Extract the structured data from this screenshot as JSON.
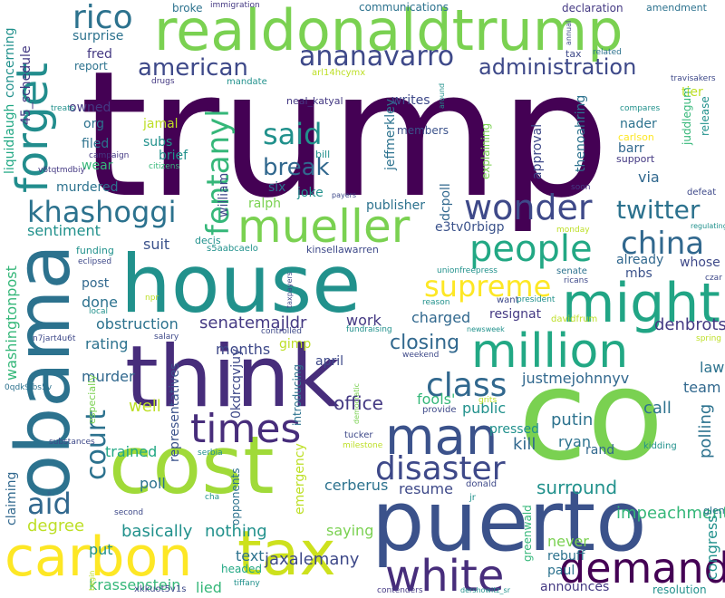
{
  "words": [
    {
      "text": "trump",
      "color": "#440154"
    },
    {
      "text": "realdonaldtrump",
      "color": "#7ad151"
    },
    {
      "text": "house",
      "color": "#21918c"
    },
    {
      "text": "think",
      "color": "#472d7b"
    },
    {
      "text": "co",
      "color": "#7ad151"
    },
    {
      "text": "cost",
      "color": "#a0da39"
    },
    {
      "text": "obama",
      "color": "#2c728e"
    },
    {
      "text": "puerto",
      "color": "#3b528b"
    },
    {
      "text": "carbon",
      "color": "#fde725"
    },
    {
      "text": "tax",
      "color": "#cde11d"
    },
    {
      "text": "might",
      "color": "#21a585"
    },
    {
      "text": "million",
      "color": "#22a884"
    },
    {
      "text": "mueller",
      "color": "#7ad151"
    },
    {
      "text": "man",
      "color": "#3b528b"
    },
    {
      "text": "white",
      "color": "#472d7b"
    },
    {
      "text": "demand",
      "color": "#440154"
    },
    {
      "text": "forget",
      "color": "#228d8d"
    },
    {
      "text": "rico",
      "color": "#2c728e"
    },
    {
      "text": "ananavarro",
      "color": "#3e4989"
    },
    {
      "text": "people",
      "color": "#22a884"
    },
    {
      "text": "wonder",
      "color": "#3e4989"
    },
    {
      "text": "china",
      "color": "#31688e"
    },
    {
      "text": "supreme",
      "color": "#fde725"
    },
    {
      "text": "times",
      "color": "#472d7b"
    },
    {
      "text": "class",
      "color": "#31688e"
    },
    {
      "text": "disaster",
      "color": "#3e4989"
    },
    {
      "text": "khashoggi",
      "color": "#2c728e"
    },
    {
      "text": "fentanyl",
      "color": "#35b779"
    },
    {
      "text": "american",
      "color": "#3e4989"
    },
    {
      "text": "administration",
      "color": "#3e4989"
    },
    {
      "text": "said",
      "color": "#21918c"
    },
    {
      "text": "break",
      "color": "#31688e"
    },
    {
      "text": "twitter",
      "color": "#2c728e"
    },
    {
      "text": "court",
      "color": "#2c728e"
    },
    {
      "text": "aid",
      "color": "#31688e"
    },
    {
      "text": "closing",
      "color": "#31688e"
    },
    {
      "text": "surround",
      "color": "#21918c"
    },
    {
      "text": "impeachment",
      "color": "#35b779"
    },
    {
      "text": "senatemajldr",
      "color": "#443983"
    },
    {
      "text": "jaxalemany",
      "color": "#3e4989"
    },
    {
      "text": "krassenstein",
      "color": "#35b779"
    },
    {
      "text": "announces",
      "color": "#443983"
    },
    {
      "text": "resolution",
      "color": "#21918c"
    },
    {
      "text": "congress",
      "color": "#21918c"
    },
    {
      "text": "rebuff",
      "color": "#2c728e"
    },
    {
      "text": "never",
      "color": "#7ad151"
    },
    {
      "text": "basically",
      "color": "#21918c"
    },
    {
      "text": "nothing",
      "color": "#21918c"
    },
    {
      "text": "saying",
      "color": "#7ad151"
    },
    {
      "text": "degree",
      "color": "#bddf26"
    },
    {
      "text": "put",
      "color": "#21918c"
    },
    {
      "text": "poll",
      "color": "#2c728e"
    },
    {
      "text": "trained",
      "color": "#22a884"
    },
    {
      "text": "well",
      "color": "#bddf26"
    },
    {
      "text": "office",
      "color": "#443983"
    },
    {
      "text": "public",
      "color": "#21918c"
    },
    {
      "text": "kill",
      "color": "#31688e"
    },
    {
      "text": "ryan",
      "color": "#2c728e"
    },
    {
      "text": "putin",
      "color": "#2c728e"
    },
    {
      "text": "call",
      "color": "#2c728e"
    },
    {
      "text": "rand",
      "color": "#31688e"
    },
    {
      "text": "team",
      "color": "#31688e"
    },
    {
      "text": "law",
      "color": "#2c728e"
    },
    {
      "text": "polling",
      "color": "#2c728e"
    },
    {
      "text": "denbrots",
      "color": "#443983"
    },
    {
      "text": "justmejohnnyv",
      "color": "#31688e"
    },
    {
      "text": "resignat",
      "color": "#443983"
    },
    {
      "text": "charged",
      "color": "#31688e"
    },
    {
      "text": "fools'",
      "color": "#35b779"
    },
    {
      "text": "pressed",
      "color": "#21918c"
    },
    {
      "text": "april",
      "color": "#3e4989"
    },
    {
      "text": "months",
      "color": "#3e4989"
    },
    {
      "text": "work",
      "color": "#443983"
    },
    {
      "text": "gimp",
      "color": "#bddf26"
    },
    {
      "text": "rating",
      "color": "#2c728e"
    },
    {
      "text": "murder",
      "color": "#31688e"
    },
    {
      "text": "obstruction",
      "color": "#2c728e"
    },
    {
      "text": "done",
      "color": "#2c728e"
    },
    {
      "text": "post",
      "color": "#31688e"
    },
    {
      "text": "sentiment",
      "color": "#21918c"
    },
    {
      "text": "suit",
      "color": "#3b528b"
    },
    {
      "text": "ralph",
      "color": "#7ad151"
    },
    {
      "text": "joke",
      "color": "#21918c"
    },
    {
      "text": "six",
      "color": "#2c728e"
    },
    {
      "text": "william",
      "color": "#3e4989"
    },
    {
      "text": "publisher",
      "color": "#2c728e"
    },
    {
      "text": "e3tv0rbigp",
      "color": "#3b528b"
    },
    {
      "text": "mbs",
      "color": "#3b528b"
    },
    {
      "text": "already",
      "color": "#31688e"
    },
    {
      "text": "whose",
      "color": "#3e4989"
    },
    {
      "text": "via",
      "color": "#31688e"
    },
    {
      "text": "approval",
      "color": "#3e4989"
    },
    {
      "text": "dcpoll",
      "color": "#31688e"
    },
    {
      "text": "explaining",
      "color": "#7ad151"
    },
    {
      "text": "thenoahring",
      "color": "#2c728e"
    },
    {
      "text": "nader",
      "color": "#2c728e"
    },
    {
      "text": "barr",
      "color": "#31688e"
    },
    {
      "text": "carlson",
      "color": "#fde725"
    },
    {
      "text": "support",
      "color": "#443983"
    },
    {
      "text": "tier",
      "color": "#bddf26"
    },
    {
      "text": "jeffmerkley",
      "color": "#2c728e"
    },
    {
      "text": "members",
      "color": "#3b528b"
    },
    {
      "text": "writes",
      "color": "#3e4989"
    },
    {
      "text": "neal_katyal",
      "color": "#443983"
    },
    {
      "text": "bill",
      "color": "#21918c"
    },
    {
      "text": "jamal",
      "color": "#bddf26"
    },
    {
      "text": "subs",
      "color": "#21918c"
    },
    {
      "text": "brief",
      "color": "#21918c"
    },
    {
      "text": "org",
      "color": "#2c728e"
    },
    {
      "text": "owned",
      "color": "#443983"
    },
    {
      "text": "filed",
      "color": "#2c728e"
    },
    {
      "text": "wear",
      "color": "#35b779"
    },
    {
      "text": "murdered",
      "color": "#2c728e"
    },
    {
      "text": "surprise",
      "color": "#2c728e"
    },
    {
      "text": "fred",
      "color": "#443983"
    },
    {
      "text": "report",
      "color": "#2c728e"
    },
    {
      "text": "liquidlaugh",
      "color": "#22a884"
    },
    {
      "text": "45_schedule",
      "color": "#443983"
    },
    {
      "text": "concerning",
      "color": "#21918c"
    },
    {
      "text": "washingtonpost",
      "color": "#35b779"
    },
    {
      "text": "claiming",
      "color": "#31688e"
    },
    {
      "text": "representatives",
      "color": "#3b528b"
    },
    {
      "text": "0kdrcqvjuy",
      "color": "#3e4989"
    },
    {
      "text": "introducing",
      "color": "#2c728e"
    },
    {
      "text": "opponents",
      "color": "#2c728e"
    },
    {
      "text": "emergency",
      "color": "#bddf26"
    },
    {
      "text": "cerberus",
      "color": "#2c728e"
    },
    {
      "text": "resume",
      "color": "#3e4989"
    },
    {
      "text": "text",
      "color": "#2c728e"
    },
    {
      "text": "headed",
      "color": "#22a884"
    },
    {
      "text": "lied",
      "color": "#35b779"
    },
    {
      "text": "paul",
      "color": "#2c728e"
    },
    {
      "text": "greenwald",
      "color": "#35b779"
    },
    {
      "text": "glenn",
      "color": "#2c728e"
    },
    {
      "text": "kidding",
      "color": "#21918c"
    },
    {
      "text": "communications",
      "color": "#2c728e"
    },
    {
      "text": "broke",
      "color": "#2c728e"
    },
    {
      "text": "immigration",
      "color": "#443983"
    },
    {
      "text": "declaration",
      "color": "#443983"
    },
    {
      "text": "amendment",
      "color": "#2c728e"
    },
    {
      "text": "arl14hcymx",
      "color": "#bddf26"
    },
    {
      "text": "mandate",
      "color": "#21918c"
    },
    {
      "text": "drugs",
      "color": "#443983"
    },
    {
      "text": "treats",
      "color": "#21918c"
    },
    {
      "text": "campaign",
      "color": "#443983"
    },
    {
      "text": "citizens",
      "color": "#35b779"
    },
    {
      "text": "v6tqtmdbiy",
      "color": "#443983"
    },
    {
      "text": "funding",
      "color": "#21918c"
    },
    {
      "text": "eclipsed",
      "color": "#3e4989"
    },
    {
      "text": "s5aabcaelo",
      "color": "#21918c"
    },
    {
      "text": "kinsellawarren",
      "color": "#3e4989"
    },
    {
      "text": "decis",
      "color": "#21918c"
    },
    {
      "text": "unionfreepress",
      "color": "#21918c"
    },
    {
      "text": "reason",
      "color": "#21918c"
    },
    {
      "text": "senate",
      "color": "#2c728e"
    },
    {
      "text": "ricans",
      "color": "#3e4989"
    },
    {
      "text": "want",
      "color": "#3e4989"
    },
    {
      "text": "president",
      "color": "#21918c"
    },
    {
      "text": "davidfrum",
      "color": "#bddf26"
    },
    {
      "text": "newsweek",
      "color": "#21918c"
    },
    {
      "text": "weekend",
      "color": "#3e4989"
    },
    {
      "text": "fundraising",
      "color": "#21918c"
    },
    {
      "text": "controlled",
      "color": "#3e4989"
    },
    {
      "text": "salary",
      "color": "#3e4989"
    },
    {
      "text": "local",
      "color": "#21918c"
    },
    {
      "text": "npr",
      "color": "#bddf26"
    },
    {
      "text": "n7jart4u6t",
      "color": "#3e4989"
    },
    {
      "text": "0qdk9lbs5v",
      "color": "#2c728e"
    },
    {
      "text": "especially",
      "color": "#7ad151"
    },
    {
      "text": "substances",
      "color": "#3e4989"
    },
    {
      "text": "serbia",
      "color": "#21918c"
    },
    {
      "text": "cha",
      "color": "#21918c"
    },
    {
      "text": "milestone",
      "color": "#bddf26"
    },
    {
      "text": "tucker",
      "color": "#3e4989"
    },
    {
      "text": "democratic",
      "color": "#7ad151"
    },
    {
      "text": "provide",
      "color": "#3e4989"
    },
    {
      "text": "grits",
      "color": "#bddf26"
    },
    {
      "text": "jr",
      "color": "#21918c"
    },
    {
      "text": "donald",
      "color": "#3e4989"
    },
    {
      "text": "second",
      "color": "#3e4989"
    },
    {
      "text": "begin",
      "color": "#bddf26"
    },
    {
      "text": "tiffany",
      "color": "#21918c"
    },
    {
      "text": "xkkuot5v1s",
      "color": "#3e4989"
    },
    {
      "text": "contenders",
      "color": "#443983"
    },
    {
      "text": "dershowitz_sr",
      "color": "#21918c"
    },
    {
      "text": "tax",
      "color": "#3e4989"
    },
    {
      "text": "related",
      "color": "#2c728e"
    },
    {
      "text": "annual",
      "color": "#3e4989"
    },
    {
      "text": "travisakers",
      "color": "#3e4989"
    },
    {
      "text": "compares",
      "color": "#21918c"
    },
    {
      "text": "juddlegum",
      "color": "#35b779"
    },
    {
      "text": "release",
      "color": "#21918c"
    },
    {
      "text": "soon",
      "color": "#443983"
    },
    {
      "text": "defeat",
      "color": "#3e4989"
    },
    {
      "text": "regulating",
      "color": "#21918c"
    },
    {
      "text": "monday",
      "color": "#bddf26"
    },
    {
      "text": "payers",
      "color": "#3e4989"
    },
    {
      "text": "taxpayers",
      "color": "#3e4989"
    },
    {
      "text": "czar",
      "color": "#3e4989"
    },
    {
      "text": "spring",
      "color": "#bddf26"
    },
    {
      "text": "around",
      "color": "#21918c"
    }
  ]
}
